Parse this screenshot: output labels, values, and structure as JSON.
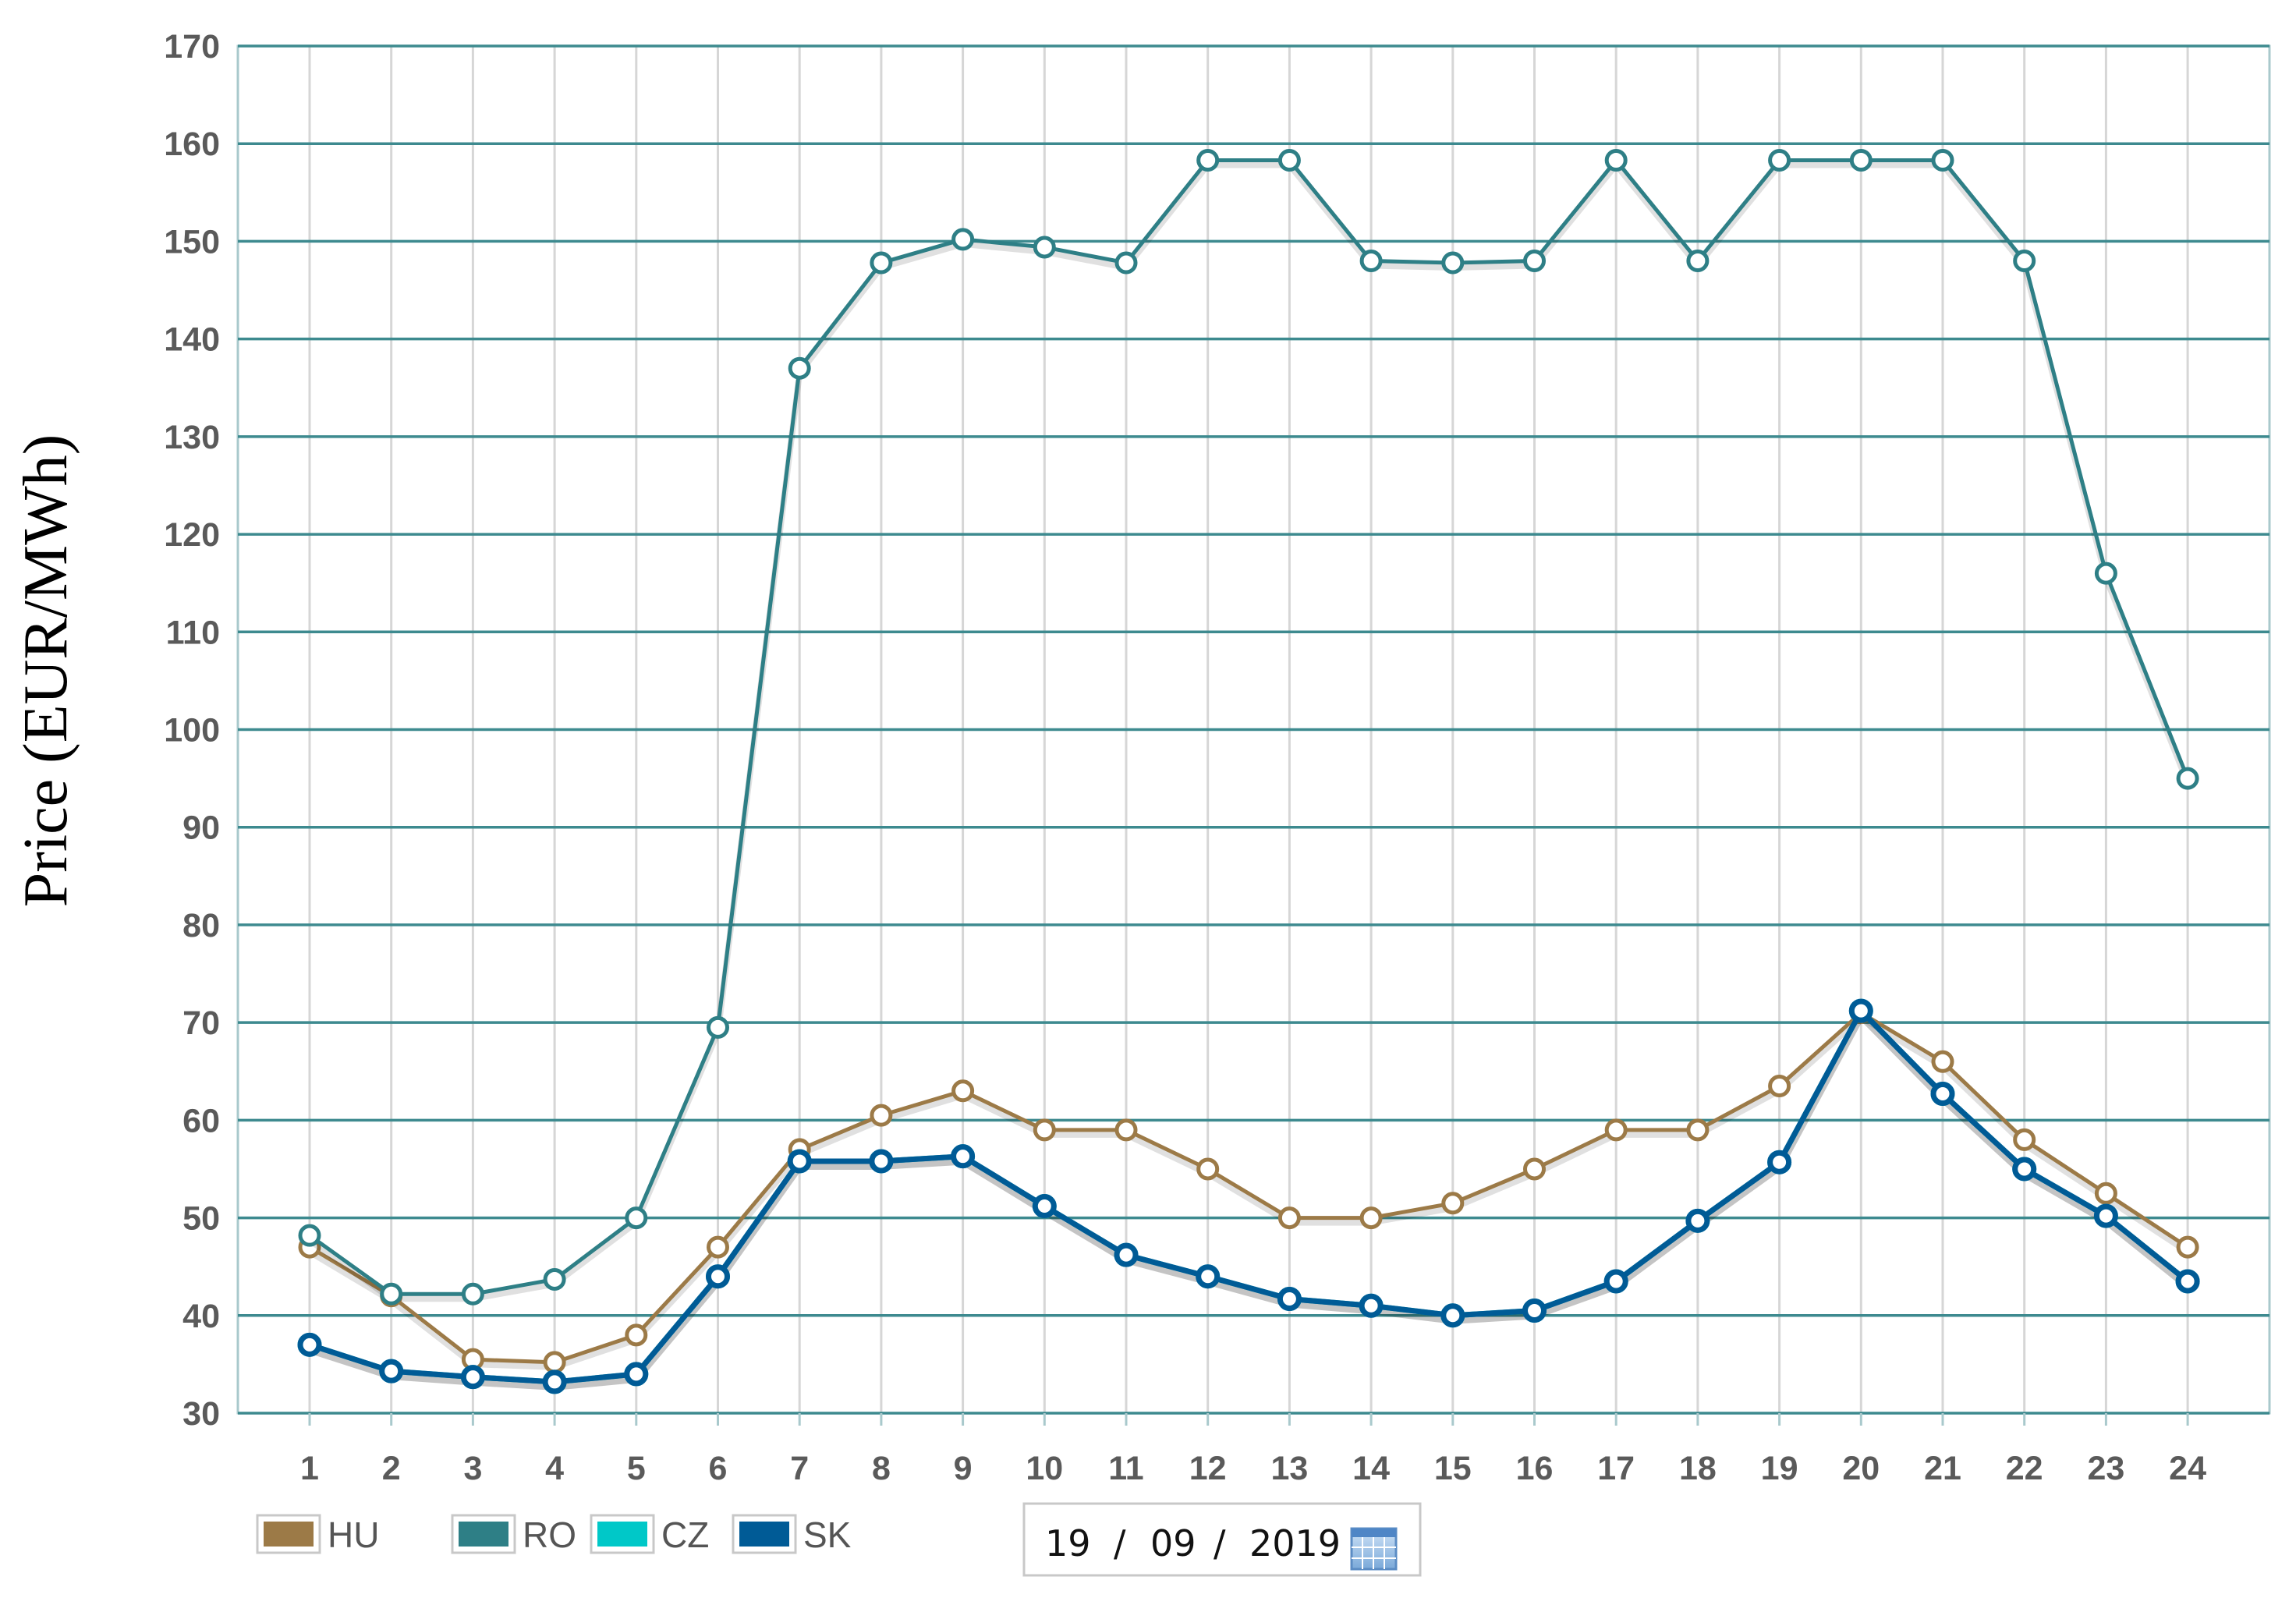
{
  "chart_data": {
    "type": "line",
    "title": "",
    "xlabel": "",
    "ylabel": "Price (EUR/MWh)",
    "x": [
      1,
      2,
      3,
      4,
      5,
      6,
      7,
      8,
      9,
      10,
      11,
      12,
      13,
      14,
      15,
      16,
      17,
      18,
      19,
      20,
      21,
      22,
      23,
      24
    ],
    "ylim": [
      30,
      170
    ],
    "yticks": [
      30,
      40,
      50,
      60,
      70,
      80,
      90,
      100,
      110,
      120,
      130,
      140,
      150,
      160,
      170
    ],
    "grid": true,
    "legend_position": "bottom-left",
    "series": [
      {
        "name": "HU",
        "color": "#9c7a47",
        "values": [
          47,
          42,
          35.5,
          35.2,
          38,
          47,
          57,
          60.5,
          63,
          59,
          59,
          55,
          50,
          50,
          51.5,
          55,
          59,
          59,
          63.5,
          71,
          66,
          58,
          52.5,
          47
        ]
      },
      {
        "name": "RO",
        "color": "#2e7f86",
        "values": [
          48.2,
          42.2,
          42.2,
          43.7,
          50,
          69.5,
          137,
          147.8,
          150.2,
          149.4,
          147.8,
          158.3,
          158.3,
          148,
          147.8,
          148,
          158.3,
          148,
          158.3,
          158.3,
          158.3,
          148,
          116,
          95
        ]
      },
      {
        "name": "CZ",
        "color": "#00c8c8",
        "values": [
          37,
          34.3,
          33.7,
          33.2,
          34,
          44,
          55.8,
          55.8,
          56.3,
          51.2,
          46.2,
          44,
          41.7,
          41,
          40,
          40.5,
          43.5,
          49.7,
          55.7,
          71.2,
          62.7,
          55,
          50.2,
          43.5
        ]
      },
      {
        "name": "SK",
        "color": "#005b96",
        "values": [
          37,
          34.3,
          33.7,
          33.2,
          34,
          44,
          55.8,
          55.8,
          56.3,
          51.2,
          46.2,
          44,
          41.7,
          41,
          40,
          40.5,
          43.5,
          49.7,
          55.7,
          71.2,
          62.7,
          55,
          50.2,
          43.5
        ]
      }
    ],
    "date_picker": {
      "day": "19",
      "month": "09",
      "year": "2019",
      "separator": "/"
    }
  }
}
